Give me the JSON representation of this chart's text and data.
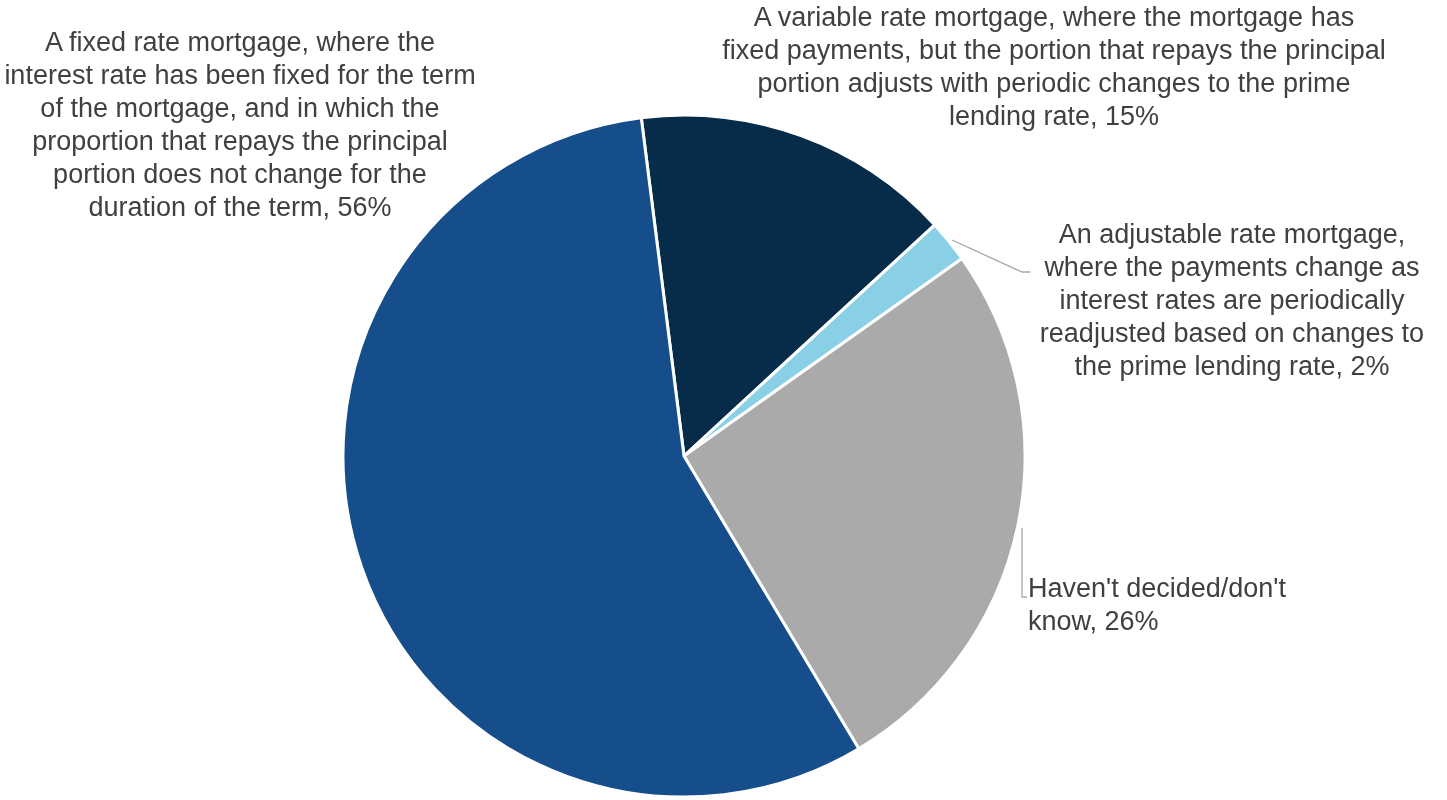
{
  "chart_data": {
    "type": "pie",
    "categories": [
      "A variable rate mortgage, where the mortgage has fixed payments, but the portion that repays the principal portion adjusts with periodic changes to the prime lending rate",
      "An adjustable rate mortgage, where the payments change as interest rates are periodically readjusted based on changes to the prime lending rate",
      "Haven't decided/don't know",
      "A fixed rate mortgage, where the interest rate has been fixed for the term of the mortgage, and in which the proportion that repays the principal portion does not change for the duration of the term"
    ],
    "values": [
      15,
      2,
      26,
      56
    ],
    "value_labels": [
      "15%",
      "2%",
      "26%",
      "56%"
    ],
    "colors": [
      "#072c4a",
      "#89d0e6",
      "#aaaaaa",
      "#164e8c"
    ]
  }
}
